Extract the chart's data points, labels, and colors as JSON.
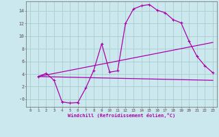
{
  "xlabel": "Windchill (Refroidissement éolien,°C)",
  "bg_color": "#cce8ef",
  "grid_color": "#aacccc",
  "line_color": "#aa00aa",
  "xlim": [
    -0.5,
    23.5
  ],
  "ylim": [
    -1.2,
    15.5
  ],
  "xticks": [
    0,
    1,
    2,
    3,
    4,
    5,
    6,
    7,
    8,
    9,
    10,
    11,
    12,
    13,
    14,
    15,
    16,
    17,
    18,
    19,
    20,
    21,
    22,
    23
  ],
  "yticks": [
    0,
    2,
    4,
    6,
    8,
    10,
    12,
    14
  ],
  "ytick_labels": [
    "-0",
    "2",
    "4",
    "6",
    "8",
    "10",
    "12",
    "14"
  ],
  "series1_x": [
    1,
    2,
    3,
    4,
    5,
    6,
    7,
    8,
    9,
    10,
    11,
    12,
    13,
    14,
    15,
    16,
    17,
    18,
    19,
    20,
    21,
    22,
    23
  ],
  "series1_y": [
    3.6,
    4.1,
    3.0,
    -0.4,
    -0.6,
    -0.5,
    1.8,
    4.6,
    8.8,
    4.3,
    4.5,
    12.0,
    14.3,
    14.8,
    15.0,
    14.1,
    13.7,
    12.6,
    12.1,
    9.2,
    6.8,
    5.3,
    4.2
  ],
  "series2_x": [
    1,
    23
  ],
  "series2_y": [
    3.6,
    9.0
  ],
  "series3_x": [
    1,
    23
  ],
  "series3_y": [
    3.6,
    3.0
  ],
  "marker_x": [
    1,
    2,
    3,
    4,
    5,
    6,
    7,
    8,
    9,
    10,
    11,
    12,
    13,
    14,
    15,
    16,
    17,
    18,
    19,
    20,
    21,
    22,
    23
  ],
  "marker_y": [
    3.6,
    4.1,
    3.0,
    -0.4,
    -0.6,
    -0.5,
    1.8,
    4.6,
    8.8,
    4.3,
    4.5,
    12.0,
    14.3,
    14.8,
    15.0,
    14.1,
    13.7,
    12.6,
    12.1,
    9.2,
    6.8,
    5.3,
    4.2
  ]
}
